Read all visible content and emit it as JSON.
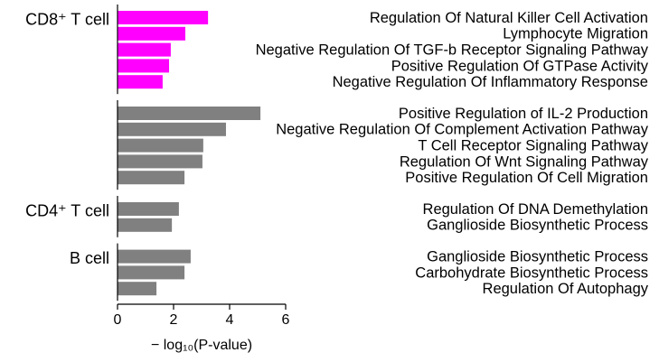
{
  "chart_data": {
    "type": "bar",
    "orientation": "horizontal",
    "xlabel": "− log₁₀(P-value)",
    "xlim": [
      0,
      6
    ],
    "xticks": [
      0,
      2,
      4,
      6
    ],
    "groups": [
      {
        "label": "CD8⁺ T cell",
        "color": "#ff00ff",
        "categories": [
          "Regulation Of Natural Killer Cell Activation",
          "Lymphocyte Migration",
          "Negative Regulation Of TGF-b Receptor Signaling Pathway",
          "Positive Regulation Of GTPase Activity",
          "Negative Regulation Of Inflammatory Response"
        ],
        "values": [
          3.23,
          2.42,
          1.9,
          1.84,
          1.61
        ]
      },
      {
        "color": "#808080",
        "categories": [
          "Positive Regulation of IL-2 Production",
          "Negative Regulation Of Complement Activation Pathway",
          "T Cell Receptor Signaling Pathway",
          "Regulation Of Wnt Signaling Pathway",
          "Positive Regulation Of Cell Migration"
        ],
        "values": [
          5.1,
          3.87,
          3.06,
          3.03,
          2.39
        ]
      },
      {
        "label": "CD4⁺ T cell",
        "color": "#808080",
        "categories": [
          "Regulation Of DNA Demethylation",
          "Ganglioside Biosynthetic Process"
        ],
        "values": [
          2.19,
          1.94
        ]
      },
      {
        "label": "B cell",
        "color": "#808080",
        "categories": [
          "Ganglioside Biosynthetic Process",
          "Carbohydrate Biosynthetic Process",
          "Regulation Of Autophagy"
        ],
        "values": [
          2.61,
          2.39,
          1.39
        ]
      }
    ]
  }
}
